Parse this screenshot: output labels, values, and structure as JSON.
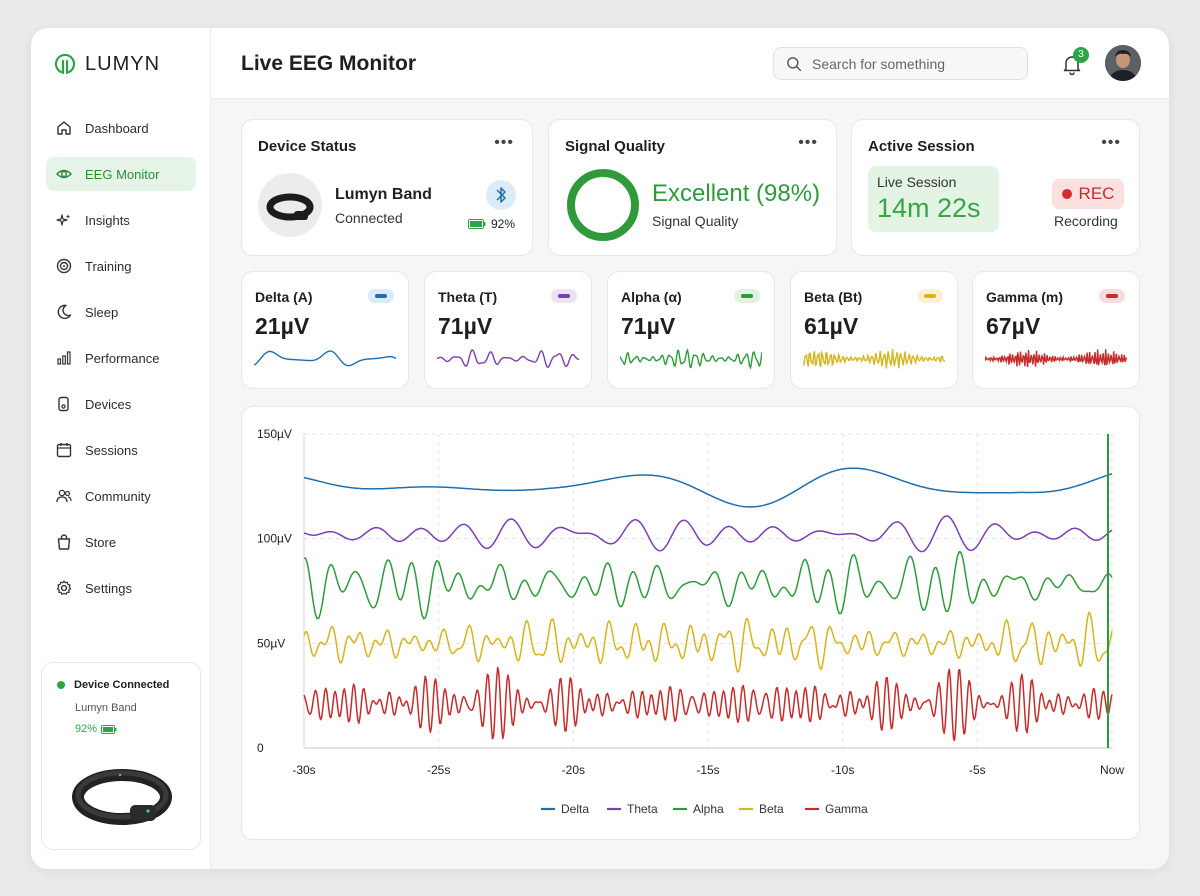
{
  "app": {
    "name": "LUMYN"
  },
  "sidebar": {
    "items": [
      {
        "label": "Dashboard",
        "icon": "home-icon"
      },
      {
        "label": "EEG Monitor",
        "icon": "eye-icon",
        "active": true
      },
      {
        "label": "Insights",
        "icon": "sparkle-icon"
      },
      {
        "label": "Training",
        "icon": "target-icon"
      },
      {
        "label": "Sleep",
        "icon": "moon-icon"
      },
      {
        "label": "Performance",
        "icon": "bar-chart-icon"
      },
      {
        "label": "Devices",
        "icon": "device-icon"
      },
      {
        "label": "Sessions",
        "icon": "calendar-icon"
      },
      {
        "label": "Community",
        "icon": "users-icon"
      },
      {
        "label": "Store",
        "icon": "bag-icon"
      },
      {
        "label": "Settings",
        "icon": "gear-icon"
      }
    ],
    "device_card": {
      "status": "Device Connected",
      "name": "Lumyn Band",
      "battery": "92%"
    }
  },
  "header": {
    "title": "Live EEG Monitor",
    "search_placeholder": "Search for something",
    "notification_count": "3"
  },
  "device_status": {
    "title": "Device Status",
    "device_name": "Lumyn Band",
    "state": "Connected",
    "battery": "92%"
  },
  "signal_quality": {
    "title": "Signal Quality",
    "value": "Excellent (98%)",
    "label": "Signal Quality",
    "percent": 98
  },
  "active_session": {
    "title": "Active Session",
    "session_label": "Live Session",
    "duration": "14m 22s",
    "rec_label": "REC",
    "status": "Recording"
  },
  "bands": [
    {
      "name": "Delta (A)",
      "value": "21µV",
      "color": "#1f6fb0",
      "pill_bg": "#dcebf8"
    },
    {
      "name": "Theta (T)",
      "value": "71µV",
      "color": "#7b3fb0",
      "pill_bg": "#ece2f6"
    },
    {
      "name": "Alpha (α)",
      "value": "71µV",
      "color": "#2f9a3c",
      "pill_bg": "#dff1e1"
    },
    {
      "name": "Beta (Bt)",
      "value": "61µV",
      "color": "#d6b41d",
      "pill_bg": "#f8f0cf"
    },
    {
      "name": "Gamma (m)",
      "value": "67µV",
      "color": "#c62c2c",
      "pill_bg": "#f8dcdc"
    }
  ],
  "chart_data": {
    "type": "line",
    "x_ticks": [
      "-30s",
      "-25s",
      "-20s",
      "-15s",
      "-10s",
      "-5s",
      "Now"
    ],
    "y_ticks": [
      "0",
      "50µV",
      "100µV",
      "150µV"
    ],
    "ylim": [
      0,
      150
    ],
    "xlim": [
      -30,
      0
    ],
    "grid": true,
    "legend_position": "bottom",
    "series": [
      {
        "name": "Delta",
        "color": "#1f6fb0",
        "center": 125,
        "amp": 8,
        "freq": 0.35
      },
      {
        "name": "Theta",
        "color": "#7b3fb0",
        "center": 102,
        "amp": 6,
        "freq": 1.1
      },
      {
        "name": "Alpha",
        "color": "#2f9a3c",
        "center": 78,
        "amp": 11,
        "freq": 2.2
      },
      {
        "name": "Beta",
        "color": "#d6b41d",
        "center": 50,
        "amp": 9,
        "freq": 4.5
      },
      {
        "name": "Gamma",
        "color": "#c62c2c",
        "center": 21,
        "amp": 10,
        "freq": 7
      }
    ]
  }
}
